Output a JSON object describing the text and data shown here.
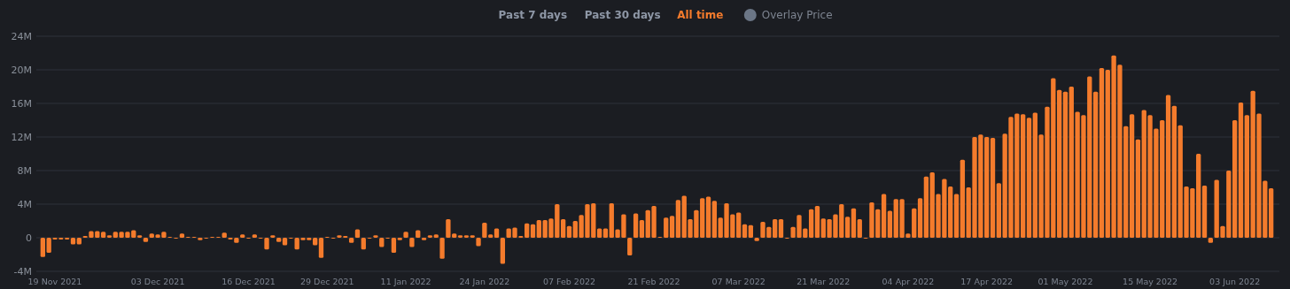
{
  "chart_data": {
    "type": "bar",
    "color": "#f47b2c",
    "annotations": [
      "Past 7 days",
      "Past 30 days",
      "All time",
      "Overlay Price"
    ],
    "categories": [
      null,
      null,
      "19 Nov 2021",
      null,
      null,
      null,
      null,
      null,
      null,
      null,
      null,
      null,
      null,
      null,
      null,
      null,
      null,
      null,
      null,
      "03 Dec 2021",
      null,
      null,
      null,
      null,
      null,
      null,
      null,
      null,
      null,
      null,
      null,
      null,
      null,
      null,
      "16 Dec 2021",
      null,
      null,
      null,
      null,
      null,
      null,
      null,
      null,
      null,
      null,
      null,
      null,
      "29 Dec 2021",
      null,
      null,
      null,
      null,
      null,
      null,
      null,
      null,
      null,
      null,
      null,
      null,
      "11 Jan 2022",
      null,
      null,
      null,
      null,
      null,
      null,
      null,
      null,
      null,
      null,
      null,
      null,
      "24 Jan 2022",
      null,
      null,
      null,
      null,
      null,
      null,
      null,
      null,
      null,
      null,
      null,
      null,
      null,
      "07 Feb 2022",
      null,
      null,
      null,
      null,
      null,
      null,
      null,
      null,
      null,
      null,
      null,
      null,
      null,
      "21 Feb 2022",
      null,
      null,
      null,
      null,
      null,
      null,
      null,
      null,
      null,
      null,
      null,
      null,
      null,
      "07 Mar 2022",
      null,
      null,
      null,
      null,
      null,
      null,
      null,
      null,
      null,
      null,
      null,
      null,
      null,
      "21 Mar 2022",
      null,
      null,
      null,
      null,
      null,
      null,
      null,
      null,
      null,
      null,
      null,
      null,
      null,
      "04 Apr 2022",
      null,
      null,
      null,
      null,
      null,
      null,
      null,
      null,
      null,
      null,
      null,
      null,
      "17 Apr 2022",
      null,
      null,
      null,
      null,
      null,
      null,
      null,
      null,
      null,
      null,
      null,
      null,
      "01 May 2022",
      null,
      null,
      null,
      null,
      null,
      null,
      null,
      null,
      null,
      null,
      null,
      null,
      null,
      "15 May 2022",
      null,
      null,
      null,
      null,
      null,
      null,
      null,
      null,
      null,
      null,
      null,
      null,
      null,
      "03 Jun 2022",
      null,
      null,
      null,
      null,
      null,
      null
    ],
    "values": [
      -2.3,
      -1.8,
      -0.2,
      -0.2,
      -0.2,
      -0.8,
      -0.8,
      0.2,
      0.8,
      0.8,
      0.7,
      0.3,
      0.7,
      0.7,
      0.7,
      0.9,
      0.3,
      -0.5,
      0.5,
      0.4,
      0.7,
      0.1,
      -0.1,
      0.5,
      0.1,
      0.1,
      -0.3,
      -0.1,
      0.1,
      0.1,
      0.6,
      -0.2,
      -0.6,
      0.4,
      -0.1,
      0.4,
      -0.1,
      -1.4,
      0.3,
      -0.5,
      -0.9,
      -0.1,
      -1.4,
      -0.3,
      -0.3,
      -0.9,
      -2.4,
      0.1,
      -0.1,
      0.3,
      0.2,
      -0.6,
      1.0,
      -1.4,
      -0.1,
      0.3,
      -1.1,
      -0.1,
      -1.8,
      -0.3,
      0.7,
      -1.1,
      0.9,
      -0.3,
      0.3,
      0.4,
      -2.5,
      2.2,
      0.5,
      0.3,
      0.3,
      0.3,
      -1.0,
      1.8,
      0.4,
      1.1,
      -3.1,
      1.1,
      1.2,
      0.2,
      1.7,
      1.6,
      2.1,
      2.1,
      2.3,
      4.0,
      2.2,
      1.4,
      2.0,
      2.7,
      4.0,
      4.1,
      1.1,
      1.1,
      4.1,
      1.0,
      2.8,
      -2.1,
      2.9,
      2.1,
      3.3,
      3.8,
      0.1,
      2.4,
      2.6,
      4.5,
      5.0,
      2.2,
      3.3,
      4.7,
      4.9,
      4.4,
      2.4,
      4.1,
      2.8,
      3.0,
      1.6,
      1.5,
      -0.4,
      1.9,
      1.3,
      2.2,
      2.2,
      -0.1,
      1.3,
      2.7,
      1.1,
      3.4,
      3.8,
      2.3,
      2.2,
      2.8,
      4.0,
      2.5,
      3.5,
      2.2,
      -0.1,
      4.2,
      3.4,
      5.2,
      3.2,
      4.6,
      4.6,
      0.5,
      3.5,
      4.7,
      7.3,
      7.8,
      5.2,
      7.0,
      6.1,
      5.2,
      9.3,
      6.0,
      12.0,
      12.3,
      12.0,
      11.9,
      6.5,
      12.4,
      14.4,
      14.8,
      14.7,
      14.3,
      14.9,
      12.3,
      15.6,
      19.0,
      17.6,
      17.4,
      18.0,
      15.0,
      14.6,
      19.2,
      17.4,
      20.2,
      20.0,
      21.7,
      20.6,
      13.3,
      14.7,
      11.7,
      15.2,
      14.6,
      13.0,
      14.0,
      17.0,
      15.7,
      13.4,
      6.1,
      5.9,
      10.0,
      6.2,
      -0.6,
      6.9,
      1.4,
      8.0,
      14.0,
      16.1,
      14.6,
      17.5,
      14.8,
      6.8,
      5.9
    ],
    "ylim": [
      -4,
      24
    ],
    "yticks": [
      {
        "value": -4,
        "label": "-4M"
      },
      0,
      {
        "value": 4,
        "label": "4M"
      },
      {
        "value": 8,
        "label": "8M"
      },
      {
        "value": 12,
        "label": "12M"
      },
      {
        "value": 16,
        "label": "16M"
      },
      {
        "value": 20,
        "label": "20M"
      },
      {
        "value": 24,
        "label": "24M"
      }
    ],
    "grid": "y"
  }
}
